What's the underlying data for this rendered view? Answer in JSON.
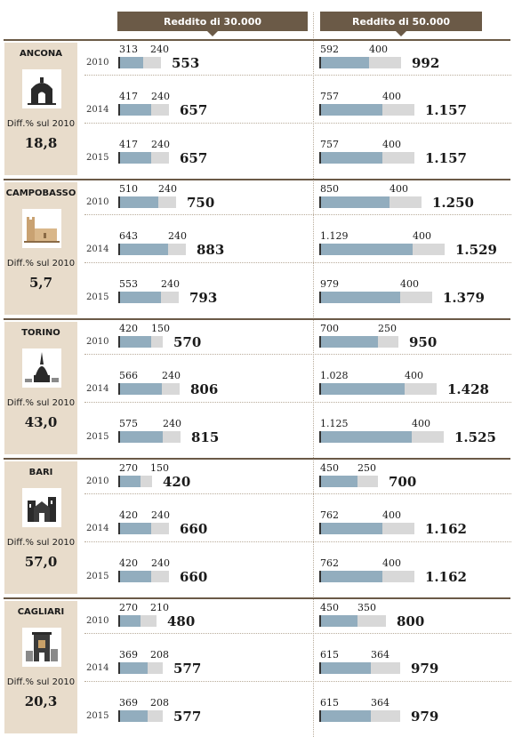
{
  "header": {
    "col1": "Reddito di 30.000",
    "col2": "Reddito di 50.000"
  },
  "chart_data": {
    "type": "bar",
    "stacked": true,
    "panels": [
      "Reddito di 30.000",
      "Reddito di 50.000"
    ],
    "diff_label": "Diff.% sul 2010",
    "cities": [
      {
        "name": "ANCONA",
        "icon": "ancona-landmark-icon",
        "diff": "18,8",
        "rows": [
          {
            "year": "2010",
            "r30": {
              "a": 313,
              "b": 240,
              "a_label": "313",
              "b_label": "240",
              "total": "553"
            },
            "r50": {
              "a": 592,
              "b": 400,
              "a_label": "592",
              "b_label": "400",
              "total": "992"
            }
          },
          {
            "year": "2014",
            "r30": {
              "a": 417,
              "b": 240,
              "a_label": "417",
              "b_label": "240",
              "total": "657"
            },
            "r50": {
              "a": 757,
              "b": 400,
              "a_label": "757",
              "b_label": "400",
              "total": "1.157"
            }
          },
          {
            "year": "2015",
            "r30": {
              "a": 417,
              "b": 240,
              "a_label": "417",
              "b_label": "240",
              "total": "657"
            },
            "r50": {
              "a": 757,
              "b": 400,
              "a_label": "757",
              "b_label": "400",
              "total": "1.157"
            }
          }
        ]
      },
      {
        "name": "CAMPOBASSO",
        "icon": "campobasso-castle-icon",
        "diff": "5,7",
        "rows": [
          {
            "year": "2010",
            "r30": {
              "a": 510,
              "b": 240,
              "a_label": "510",
              "b_label": "240",
              "total": "750"
            },
            "r50": {
              "a": 850,
              "b": 400,
              "a_label": "850",
              "b_label": "400",
              "total": "1.250"
            }
          },
          {
            "year": "2014",
            "r30": {
              "a": 643,
              "b": 240,
              "a_label": "643",
              "b_label": "240",
              "total": "883"
            },
            "r50": {
              "a": 1129,
              "b": 400,
              "a_label": "1.129",
              "b_label": "400",
              "total": "1.529"
            }
          },
          {
            "year": "2015",
            "r30": {
              "a": 553,
              "b": 240,
              "a_label": "553",
              "b_label": "240",
              "total": "793"
            },
            "r50": {
              "a": 979,
              "b": 400,
              "a_label": "979",
              "b_label": "400",
              "total": "1.379"
            }
          }
        ]
      },
      {
        "name": "TORINO",
        "icon": "torino-mole-icon",
        "diff": "43,0",
        "rows": [
          {
            "year": "2010",
            "r30": {
              "a": 420,
              "b": 150,
              "a_label": "420",
              "b_label": "150",
              "total": "570"
            },
            "r50": {
              "a": 700,
              "b": 250,
              "a_label": "700",
              "b_label": "250",
              "total": "950"
            }
          },
          {
            "year": "2014",
            "r30": {
              "a": 566,
              "b": 240,
              "a_label": "566",
              "b_label": "240",
              "total": "806"
            },
            "r50": {
              "a": 1028,
              "b": 400,
              "a_label": "1.028",
              "b_label": "400",
              "total": "1.428"
            }
          },
          {
            "year": "2015",
            "r30": {
              "a": 575,
              "b": 240,
              "a_label": "575",
              "b_label": "240",
              "total": "815"
            },
            "r50": {
              "a": 1125,
              "b": 400,
              "a_label": "1.125",
              "b_label": "400",
              "total": "1.525"
            }
          }
        ]
      },
      {
        "name": "BARI",
        "icon": "bari-basilica-icon",
        "diff": "57,0",
        "rows": [
          {
            "year": "2010",
            "r30": {
              "a": 270,
              "b": 150,
              "a_label": "270",
              "b_label": "150",
              "total": "420"
            },
            "r50": {
              "a": 450,
              "b": 250,
              "a_label": "450",
              "b_label": "250",
              "total": "700"
            }
          },
          {
            "year": "2014",
            "r30": {
              "a": 420,
              "b": 240,
              "a_label": "420",
              "b_label": "240",
              "total": "660"
            },
            "r50": {
              "a": 762,
              "b": 400,
              "a_label": "762",
              "b_label": "400",
              "total": "1.162"
            }
          },
          {
            "year": "2015",
            "r30": {
              "a": 420,
              "b": 240,
              "a_label": "420",
              "b_label": "240",
              "total": "660"
            },
            "r50": {
              "a": 762,
              "b": 400,
              "a_label": "762",
              "b_label": "400",
              "total": "1.162"
            }
          }
        ]
      },
      {
        "name": "CAGLIARI",
        "icon": "cagliari-tower-icon",
        "diff": "20,3",
        "rows": [
          {
            "year": "2010",
            "r30": {
              "a": 270,
              "b": 210,
              "a_label": "270",
              "b_label": "210",
              "total": "480"
            },
            "r50": {
              "a": 450,
              "b": 350,
              "a_label": "450",
              "b_label": "350",
              "total": "800"
            }
          },
          {
            "year": "2014",
            "r30": {
              "a": 369,
              "b": 208,
              "a_label": "369",
              "b_label": "208",
              "total": "577"
            },
            "r50": {
              "a": 615,
              "b": 364,
              "a_label": "615",
              "b_label": "364",
              "total": "979"
            }
          },
          {
            "year": "2015",
            "r30": {
              "a": 369,
              "b": 208,
              "a_label": "369",
              "b_label": "208",
              "total": "577"
            },
            "r50": {
              "a": 615,
              "b": 364,
              "a_label": "615",
              "b_label": "364",
              "total": "979"
            }
          }
        ]
      }
    ]
  }
}
